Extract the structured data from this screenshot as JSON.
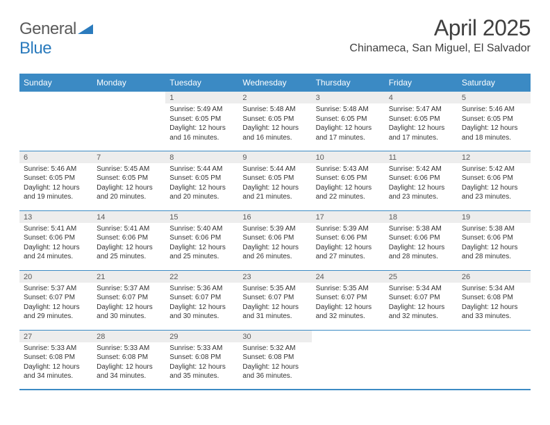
{
  "logo": {
    "word1": "General",
    "word2": "Blue",
    "word1_color": "#5a5a5a",
    "word2_color": "#2b7bbd"
  },
  "title": "April 2025",
  "location": "Chinameca, San Miguel, El Salvador",
  "weekdays": [
    "Sunday",
    "Monday",
    "Tuesday",
    "Wednesday",
    "Thursday",
    "Friday",
    "Saturday"
  ],
  "style": {
    "header_bg": "#3b8ac4",
    "header_text": "#ffffff",
    "border_color": "#3b8ac4",
    "daynum_bg": "#ededed",
    "daynum_color": "#5a5a5a",
    "body_text": "#333333",
    "page_bg": "#ffffff",
    "title_fontsize": 32,
    "location_fontsize": 16,
    "weekday_fontsize": 12,
    "daynum_fontsize": 11,
    "cell_fontsize": 10
  },
  "first_weekday_index": 2,
  "days": [
    {
      "n": 1,
      "sunrise": "5:49 AM",
      "sunset": "6:05 PM",
      "daylight": "12 hours and 16 minutes."
    },
    {
      "n": 2,
      "sunrise": "5:48 AM",
      "sunset": "6:05 PM",
      "daylight": "12 hours and 16 minutes."
    },
    {
      "n": 3,
      "sunrise": "5:48 AM",
      "sunset": "6:05 PM",
      "daylight": "12 hours and 17 minutes."
    },
    {
      "n": 4,
      "sunrise": "5:47 AM",
      "sunset": "6:05 PM",
      "daylight": "12 hours and 17 minutes."
    },
    {
      "n": 5,
      "sunrise": "5:46 AM",
      "sunset": "6:05 PM",
      "daylight": "12 hours and 18 minutes."
    },
    {
      "n": 6,
      "sunrise": "5:46 AM",
      "sunset": "6:05 PM",
      "daylight": "12 hours and 19 minutes."
    },
    {
      "n": 7,
      "sunrise": "5:45 AM",
      "sunset": "6:05 PM",
      "daylight": "12 hours and 20 minutes."
    },
    {
      "n": 8,
      "sunrise": "5:44 AM",
      "sunset": "6:05 PM",
      "daylight": "12 hours and 20 minutes."
    },
    {
      "n": 9,
      "sunrise": "5:44 AM",
      "sunset": "6:05 PM",
      "daylight": "12 hours and 21 minutes."
    },
    {
      "n": 10,
      "sunrise": "5:43 AM",
      "sunset": "6:05 PM",
      "daylight": "12 hours and 22 minutes."
    },
    {
      "n": 11,
      "sunrise": "5:42 AM",
      "sunset": "6:06 PM",
      "daylight": "12 hours and 23 minutes."
    },
    {
      "n": 12,
      "sunrise": "5:42 AM",
      "sunset": "6:06 PM",
      "daylight": "12 hours and 23 minutes."
    },
    {
      "n": 13,
      "sunrise": "5:41 AM",
      "sunset": "6:06 PM",
      "daylight": "12 hours and 24 minutes."
    },
    {
      "n": 14,
      "sunrise": "5:41 AM",
      "sunset": "6:06 PM",
      "daylight": "12 hours and 25 minutes."
    },
    {
      "n": 15,
      "sunrise": "5:40 AM",
      "sunset": "6:06 PM",
      "daylight": "12 hours and 25 minutes."
    },
    {
      "n": 16,
      "sunrise": "5:39 AM",
      "sunset": "6:06 PM",
      "daylight": "12 hours and 26 minutes."
    },
    {
      "n": 17,
      "sunrise": "5:39 AM",
      "sunset": "6:06 PM",
      "daylight": "12 hours and 27 minutes."
    },
    {
      "n": 18,
      "sunrise": "5:38 AM",
      "sunset": "6:06 PM",
      "daylight": "12 hours and 28 minutes."
    },
    {
      "n": 19,
      "sunrise": "5:38 AM",
      "sunset": "6:06 PM",
      "daylight": "12 hours and 28 minutes."
    },
    {
      "n": 20,
      "sunrise": "5:37 AM",
      "sunset": "6:07 PM",
      "daylight": "12 hours and 29 minutes."
    },
    {
      "n": 21,
      "sunrise": "5:37 AM",
      "sunset": "6:07 PM",
      "daylight": "12 hours and 30 minutes."
    },
    {
      "n": 22,
      "sunrise": "5:36 AM",
      "sunset": "6:07 PM",
      "daylight": "12 hours and 30 minutes."
    },
    {
      "n": 23,
      "sunrise": "5:35 AM",
      "sunset": "6:07 PM",
      "daylight": "12 hours and 31 minutes."
    },
    {
      "n": 24,
      "sunrise": "5:35 AM",
      "sunset": "6:07 PM",
      "daylight": "12 hours and 32 minutes."
    },
    {
      "n": 25,
      "sunrise": "5:34 AM",
      "sunset": "6:07 PM",
      "daylight": "12 hours and 32 minutes."
    },
    {
      "n": 26,
      "sunrise": "5:34 AM",
      "sunset": "6:08 PM",
      "daylight": "12 hours and 33 minutes."
    },
    {
      "n": 27,
      "sunrise": "5:33 AM",
      "sunset": "6:08 PM",
      "daylight": "12 hours and 34 minutes."
    },
    {
      "n": 28,
      "sunrise": "5:33 AM",
      "sunset": "6:08 PM",
      "daylight": "12 hours and 34 minutes."
    },
    {
      "n": 29,
      "sunrise": "5:33 AM",
      "sunset": "6:08 PM",
      "daylight": "12 hours and 35 minutes."
    },
    {
      "n": 30,
      "sunrise": "5:32 AM",
      "sunset": "6:08 PM",
      "daylight": "12 hours and 36 minutes."
    }
  ],
  "labels": {
    "sunrise": "Sunrise:",
    "sunset": "Sunset:",
    "daylight": "Daylight:"
  }
}
